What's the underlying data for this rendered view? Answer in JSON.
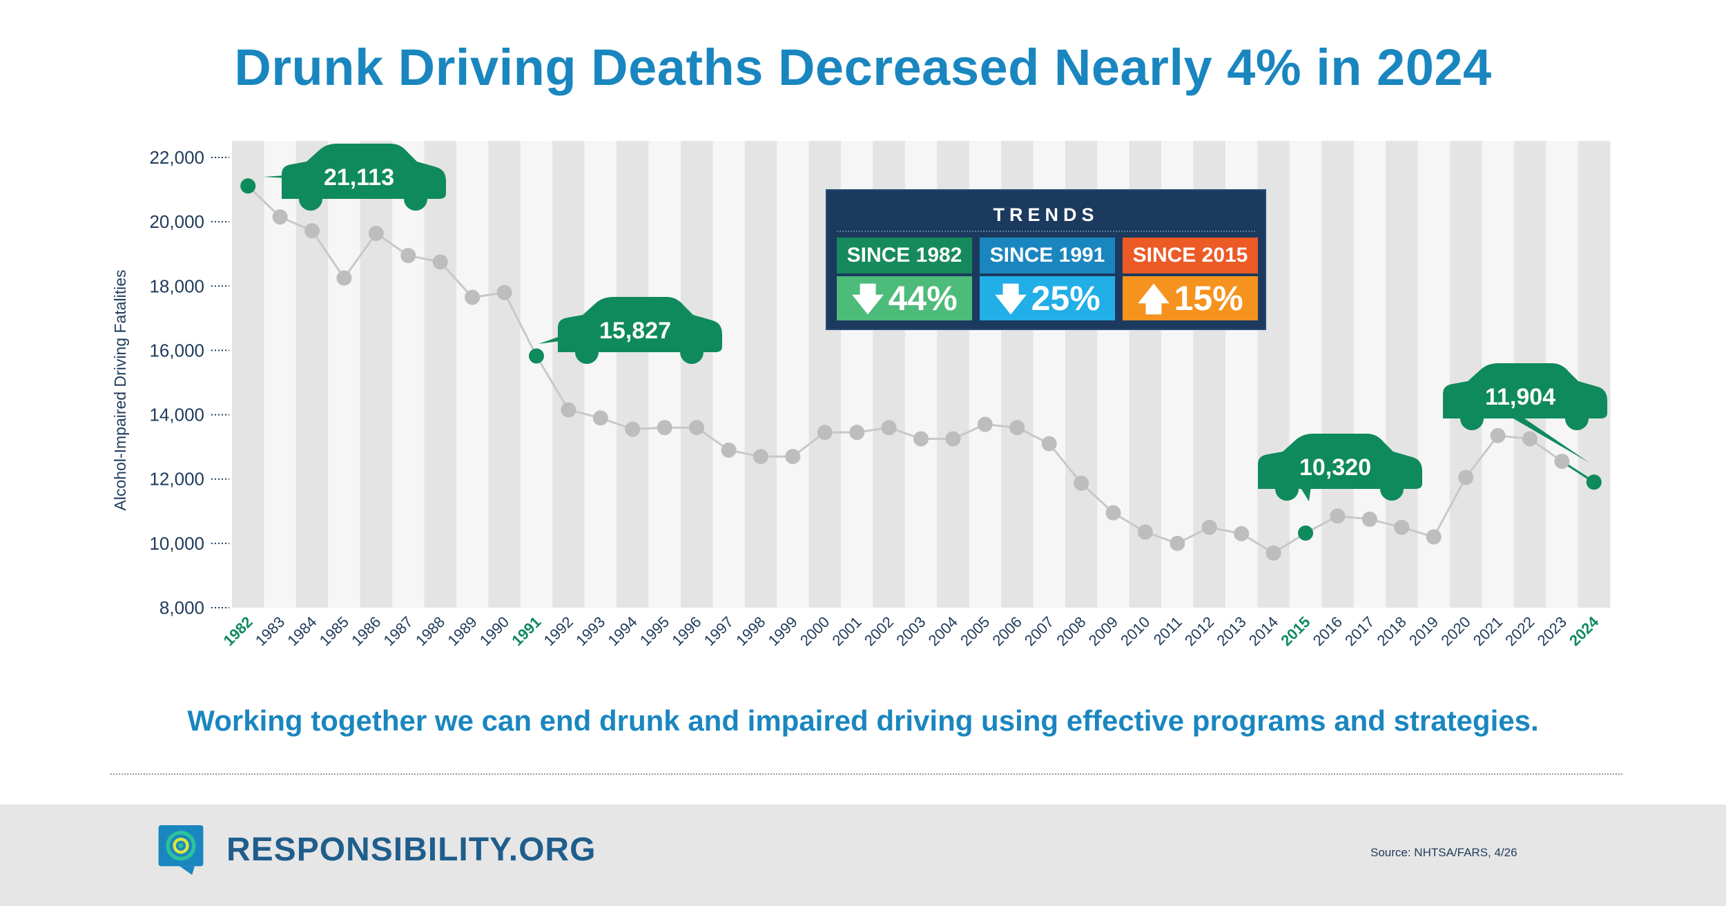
{
  "title": "Drunk Driving Deaths Decreased Nearly 4% in 2024",
  "chart_data": {
    "type": "line",
    "title": "Drunk Driving Deaths Decreased Nearly 4% in 2024",
    "ylabel": "Alcohol-Impaired Driving Fatalities",
    "xlabel": "",
    "ylim": [
      8000,
      22000
    ],
    "yticks": [
      "8,000",
      "10,000",
      "12,000",
      "14,000",
      "16,000",
      "18,000",
      "20,000",
      "22,000"
    ],
    "categories": [
      "1982",
      "1983",
      "1984",
      "1985",
      "1986",
      "1987",
      "1988",
      "1989",
      "1990",
      "1991",
      "1992",
      "1993",
      "1994",
      "1995",
      "1996",
      "1997",
      "1998",
      "1999",
      "2000",
      "2001",
      "2002",
      "2003",
      "2004",
      "2005",
      "2006",
      "2007",
      "2008",
      "2009",
      "2010",
      "2011",
      "2012",
      "2013",
      "2014",
      "2015",
      "2016",
      "2017",
      "2018",
      "2019",
      "2020",
      "2021",
      "2022",
      "2023",
      "2024"
    ],
    "values": [
      21113,
      20150,
      19720,
      18250,
      19640,
      18950,
      18750,
      17650,
      17800,
      15827,
      14150,
      13900,
      13550,
      13600,
      13600,
      12900,
      12700,
      12700,
      13450,
      13450,
      13600,
      13250,
      13250,
      13700,
      13600,
      13100,
      11870,
      10950,
      10350,
      10000,
      10500,
      10300,
      9700,
      10320,
      10850,
      10750,
      10500,
      10200,
      12050,
      13350,
      13250,
      12550,
      11904
    ],
    "highlight_years": [
      "1982",
      "1991",
      "2015",
      "2024"
    ],
    "callouts": [
      {
        "year": "1982",
        "label": "21,113"
      },
      {
        "year": "1991",
        "label": "15,827"
      },
      {
        "year": "2015",
        "label": "10,320"
      },
      {
        "year": "2024",
        "label": "11,904"
      }
    ]
  },
  "trends": {
    "heading": "TRENDS",
    "items": [
      {
        "label": "SINCE 1982",
        "arrow": "down",
        "value": "44%",
        "label_color": "#168a5c",
        "value_color": "#4dbb7a"
      },
      {
        "label": "SINCE 1991",
        "arrow": "down",
        "value": "25%",
        "label_color": "#1a86bf",
        "value_color": "#22aee6"
      },
      {
        "label": "SINCE 2015",
        "arrow": "up",
        "value": "15%",
        "label_color": "#ec5a26",
        "value_color": "#f6921e"
      }
    ]
  },
  "tagline": "Working together we can end drunk and impaired driving using effective programs and strategies.",
  "footer": {
    "brand": "RESPONSIBILITY.ORG",
    "source": "Source: NHTSA/FARS, 4/26",
    "logo_icon": "target-speech-bubble-icon"
  },
  "colors": {
    "accent": "#1a86bf",
    "highlight": "#0f8a5c",
    "line": "#c8c8c8",
    "navy": "#1c3a5e"
  }
}
